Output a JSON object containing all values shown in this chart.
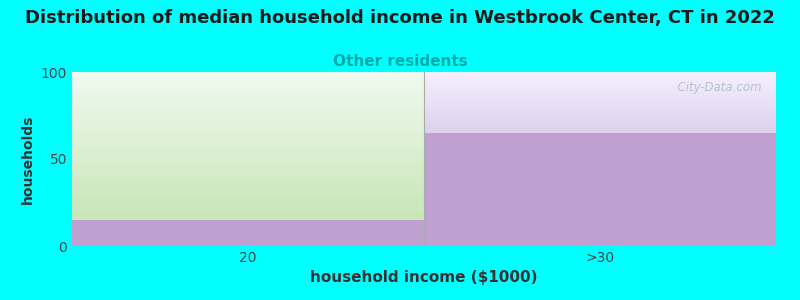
{
  "title": "Distribution of median household income in Westbrook Center, CT in 2022",
  "subtitle": "Other residents",
  "xlabel": "household income ($1000)",
  "ylabel": "households",
  "categories": [
    "20",
    ">30"
  ],
  "bar_values": [
    15,
    65
  ],
  "ylim": [
    0,
    100
  ],
  "yticks": [
    0,
    50,
    100
  ],
  "background_color": "#00FFFF",
  "title_fontsize": 13,
  "title_color": "#1a1a1a",
  "subtitle_color": "#00AAAA",
  "subtitle_fontsize": 11,
  "watermark": "  City-Data.com",
  "watermark_color": "#AABBCC",
  "xlabel_fontsize": 11,
  "ylabel_fontsize": 10,
  "tick_fontsize": 10,
  "green_bottom": "#C8E6B8",
  "green_top": "#F0FAF0",
  "purple_solid": "#C0A0D0",
  "purple_top_bottom": "#DDD0EE",
  "purple_top_top": "#F5F0FF"
}
